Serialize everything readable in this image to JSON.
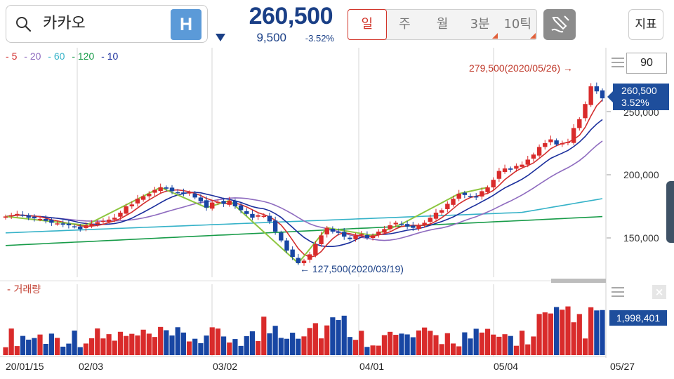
{
  "header": {
    "search_icon": "search-icon",
    "stock_name": "카카오",
    "badge": "H",
    "price": "260,500",
    "change_abs": "9,500",
    "change_pct": "-3.52%",
    "periods": [
      "일",
      "주",
      "월",
      "3분",
      "10틱"
    ],
    "active_period": "일",
    "draw_icon": "pencil-icon",
    "indicator_label": "지표"
  },
  "chart": {
    "legend": [
      {
        "label": "5",
        "color": "#d32f2f"
      },
      {
        "label": "20",
        "color": "#8e6bbf"
      },
      {
        "label": "60",
        "color": "#35b2c8"
      },
      {
        "label": "120",
        "color": "#179b48"
      },
      {
        "label": "10",
        "color": "#1a2e9c"
      }
    ],
    "period_value": "90",
    "high_annotation": "279,500(2020/05/26)",
    "low_annotation": "127,500(2020/03/19)",
    "price_tag_value": "260,500",
    "price_tag_pct": "3.52%",
    "y_ticks": [
      "250,000",
      "200,000",
      "150,000"
    ],
    "volume_label": "거래량",
    "volume_tag": "1,998,401",
    "dates": [
      "20/01/15",
      "02/03",
      "03/02",
      "04/01",
      "05/04",
      "05/27"
    ],
    "colors": {
      "up": "#d92b2b",
      "down": "#1846a3",
      "zigzag": "#8dc63f"
    }
  },
  "chart_data": {
    "type": "candlestick",
    "y_range_visible": [
      127500,
      279500
    ],
    "y_ticks": [
      150000,
      200000,
      250000
    ],
    "close": [
      167000,
      168000,
      169000,
      168000,
      166000,
      165500,
      165000,
      163500,
      162000,
      161500,
      160500,
      160000,
      159000,
      157000,
      160000,
      161000,
      162500,
      163500,
      164500,
      166000,
      170000,
      175000,
      176500,
      181000,
      183000,
      185000,
      188000,
      190000,
      189000,
      187000,
      186000,
      185000,
      186000,
      182000,
      179000,
      174000,
      178000,
      178500,
      177000,
      179500,
      175000,
      172000,
      169000,
      166000,
      168000,
      167500,
      163000,
      155000,
      148000,
      140000,
      135000,
      130000,
      132000,
      137000,
      145000,
      152000,
      158000,
      155000,
      154000,
      151000,
      149000,
      152000,
      153000,
      150000,
      152000,
      155000,
      157000,
      160000,
      162000,
      161000,
      159000,
      158000,
      160000,
      162000,
      166000,
      170000,
      172000,
      177000,
      181000,
      185000,
      184000,
      183000,
      182000,
      187000,
      190000,
      196000,
      203000,
      205000,
      204000,
      207000,
      208000,
      212000,
      216000,
      222000,
      225000,
      228000,
      224000,
      225000,
      226000,
      237000,
      244000,
      256000,
      270000,
      266000,
      260500
    ],
    "volume_max": 2800000,
    "volume_last": 1998401
  }
}
